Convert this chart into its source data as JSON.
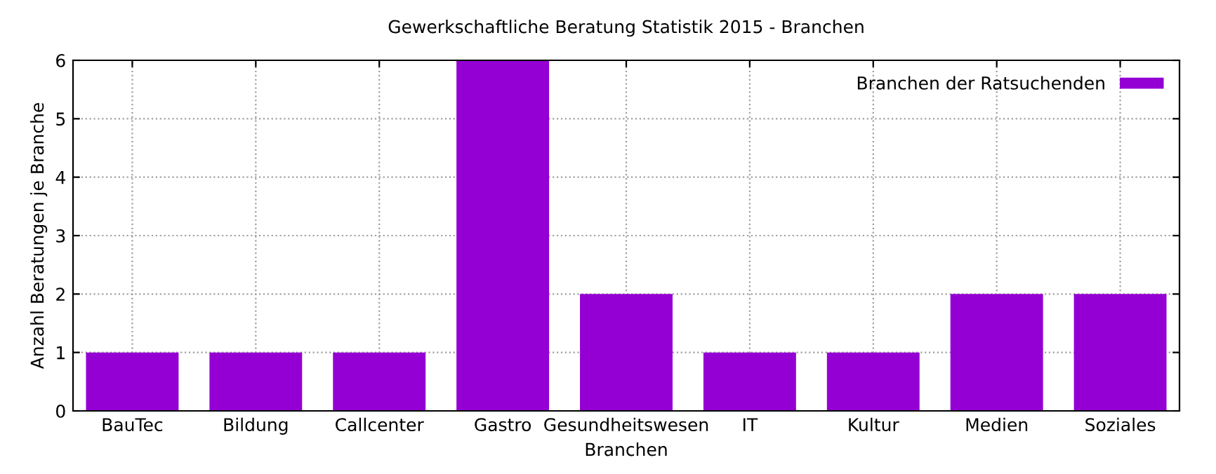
{
  "chart_data": {
    "type": "bar",
    "title": "Gewerkschaftliche Beratung Statistik 2015 - Branchen",
    "xlabel": "Branchen",
    "ylabel": "Anzahl Beratungen je Branche",
    "categories": [
      "BauTec",
      "Bildung",
      "Callcenter",
      "Gastro",
      "Gesundheitswesen",
      "IT",
      "Kultur",
      "Medien",
      "Soziales"
    ],
    "series": [
      {
        "name": "Branchen der Ratsuchenden",
        "color": "#9400d3",
        "values": [
          1,
          1,
          1,
          6,
          2,
          1,
          1,
          2,
          2
        ]
      }
    ],
    "ylim": [
      0,
      6
    ],
    "yticks": [
      0,
      1,
      2,
      3,
      4,
      5,
      6
    ],
    "grid": true,
    "legend": "top right"
  }
}
